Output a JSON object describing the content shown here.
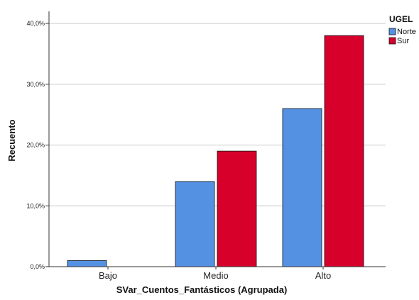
{
  "chart_data": {
    "type": "bar",
    "categories": [
      "Bajo",
      "Medio",
      "Alto"
    ],
    "series": [
      {
        "name": "Norte",
        "values": [
          1.0,
          14.0,
          26.0
        ],
        "color": "#5591e3"
      },
      {
        "name": "Sur",
        "values": [
          0.0,
          19.0,
          38.0
        ],
        "color": "#d6002b"
      }
    ],
    "xlabel": "SVar_Cuentos_Fantásticos (Agrupada)",
    "ylabel": "Recuento",
    "ylim": [
      0,
      42
    ],
    "yticks": [
      0,
      10,
      20,
      30,
      40
    ],
    "ytick_labels": [
      "0,0%",
      "10,0%",
      "20,0%",
      "30,0%",
      "40,0%"
    ],
    "legend_title": "UGEL",
    "legend_position": "top-right",
    "grid": "horizontal"
  }
}
